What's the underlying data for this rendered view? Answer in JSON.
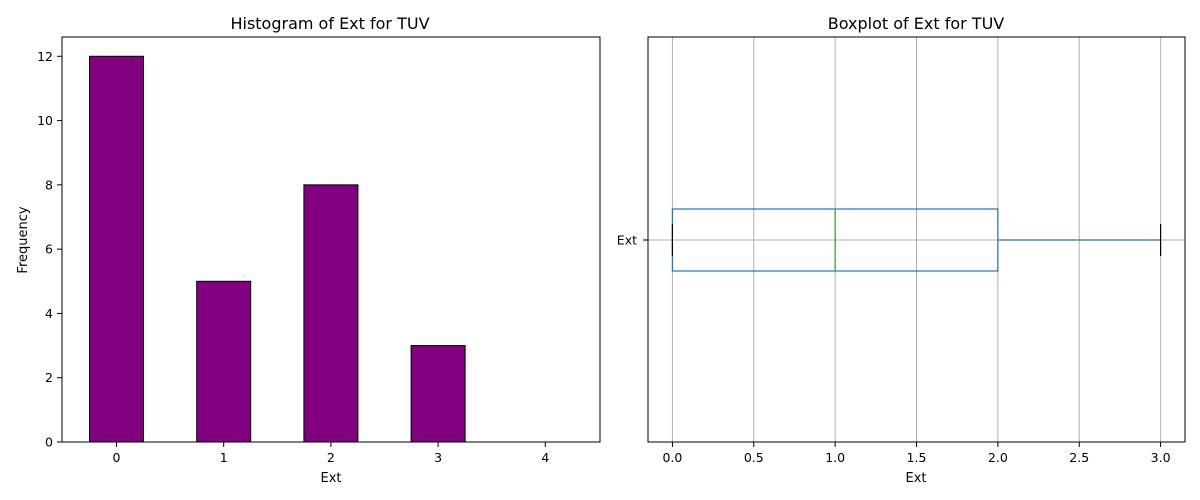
{
  "chart_data": [
    {
      "type": "bar",
      "title": "Histogram of Ext for TUV",
      "xlabel": "Ext",
      "ylabel": "Frequency",
      "categories": [
        "0",
        "1",
        "2",
        "3",
        "4"
      ],
      "values": [
        12,
        5,
        8,
        3,
        0
      ],
      "ylim": [
        0,
        12.6
      ],
      "yticks": [
        "0",
        "2",
        "4",
        "6",
        "8",
        "10",
        "12"
      ],
      "bar_color": "#800080",
      "edge_color": "#000000",
      "grid": false
    },
    {
      "type": "boxplot",
      "title": "Boxplot of Ext for TUV",
      "xlabel": "Ext",
      "category_label": "Ext",
      "xlim": [
        -0.15,
        3.15
      ],
      "xticks": [
        "0.0",
        "0.5",
        "1.0",
        "1.5",
        "2.0",
        "2.5",
        "3.0"
      ],
      "box": {
        "whislo": 0,
        "q1": 0,
        "med": 1,
        "q3": 2,
        "whishi": 3
      },
      "box_color": "#1f77b4",
      "median_color": "#2ca02c",
      "cap_color": "#000000",
      "grid": true
    }
  ]
}
